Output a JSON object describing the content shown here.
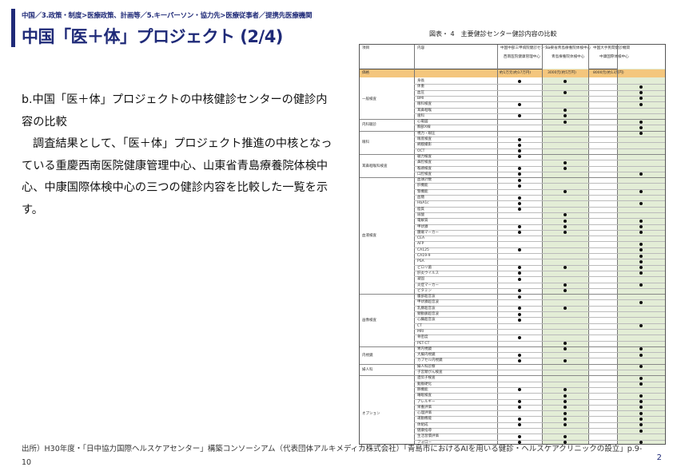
{
  "breadcrumb": "中国／3.政策・制度>医療政策、計画等／5.キーパーソン・協力先>医療従事者／提携先医療機関",
  "title": "中国「医＋体」プロジェクト (2/4)",
  "body": {
    "line1": "b.中国「医＋体」プロジェクトの中核健診センターの健診内容の比較",
    "line2": "調査結果として、「医＋体」プロジェクト推進の中核となっている重慶西南医院健康管理中心、山東省青島療養院体検中心、中康国際体検中心の三つの健診内容を比較した一覧を示す。"
  },
  "figure": {
    "title": "図表・ 4　主要健診センター健診内容の比較",
    "headers": [
      "項目",
      "内容",
      "中国中部三甲病院健診センター",
      "山東省青島療養院体検中心",
      "中国大手民間健診機関"
    ],
    "subheaders": [
      "西南医院健康管理中心",
      "青島療養院体検中心",
      "中康国際体検中心"
    ],
    "price_row": {
      "label": "価格",
      "c1": "約1万元(約17万円)",
      "c2": "3000元(約5万円)",
      "c3": "8000元(約13万円)"
    },
    "groups": [
      {
        "label": "一般検査",
        "items": [
          "身長",
          "体重",
          "血圧",
          "BMI",
          "眼科検査",
          "耳鼻咽喉",
          "歯科"
        ]
      },
      {
        "label": "内科聴診",
        "items": [
          "心電図",
          "胸部X線"
        ]
      },
      {
        "label": "眼科",
        "items": [
          "視力・眼圧",
          "眼底検査",
          "網膜撮影",
          "OCT"
        ]
      },
      {
        "label": "耳鼻咽喉科検査",
        "items": [
          "聴力検査",
          "鼻腔検査",
          "喉頭検査",
          "口腔検査"
        ]
      },
      {
        "label": "血液検査",
        "items": [
          "血球計数",
          "肝機能",
          "腎機能",
          "血糖",
          "HbA1c",
          "脂質",
          "尿酸",
          "電解質",
          "甲状腺",
          "腫瘍マーカー",
          "CEA",
          "AFP",
          "CA125",
          "CA19-9",
          "PSA",
          "ピロリ菌",
          "肝炎ウイルス",
          "凝固",
          "炎症マーカー",
          "ビタミン"
        ]
      },
      {
        "label": "画像検査",
        "items": [
          "腹部超音波",
          "甲状腺超音波",
          "乳腺超音波",
          "頸動脈超音波",
          "心臓超音波",
          "CT",
          "MRI",
          "骨密度",
          "PET-CT"
        ]
      },
      {
        "label": "内視鏡",
        "items": [
          "胃内視鏡",
          "大腸内視鏡",
          "カプセル内視鏡"
        ]
      },
      {
        "label": "婦人科",
        "items": [
          "婦人科診察",
          "子宮頸がん検査"
        ]
      },
      {
        "label": "オプション",
        "items": [
          "遺伝子検査",
          "動脈硬化",
          "肺機能",
          "睡眠検査",
          "アレルギー",
          "栄養評価",
          "心理評価",
          "運動機能",
          "体組成",
          "健康指導",
          "生活習慣評価",
          "フォロー",
          "報告書"
        ]
      }
    ]
  },
  "source": "出所）H30年度・「日中協力国際ヘルスケアセンター」構築コンソーシアム（代表団体アルキメディカ株式会社）「青島市におけるAIを用いる健診・ヘルスケアクリニックの設立」p.9-10",
  "page_number": "2"
}
